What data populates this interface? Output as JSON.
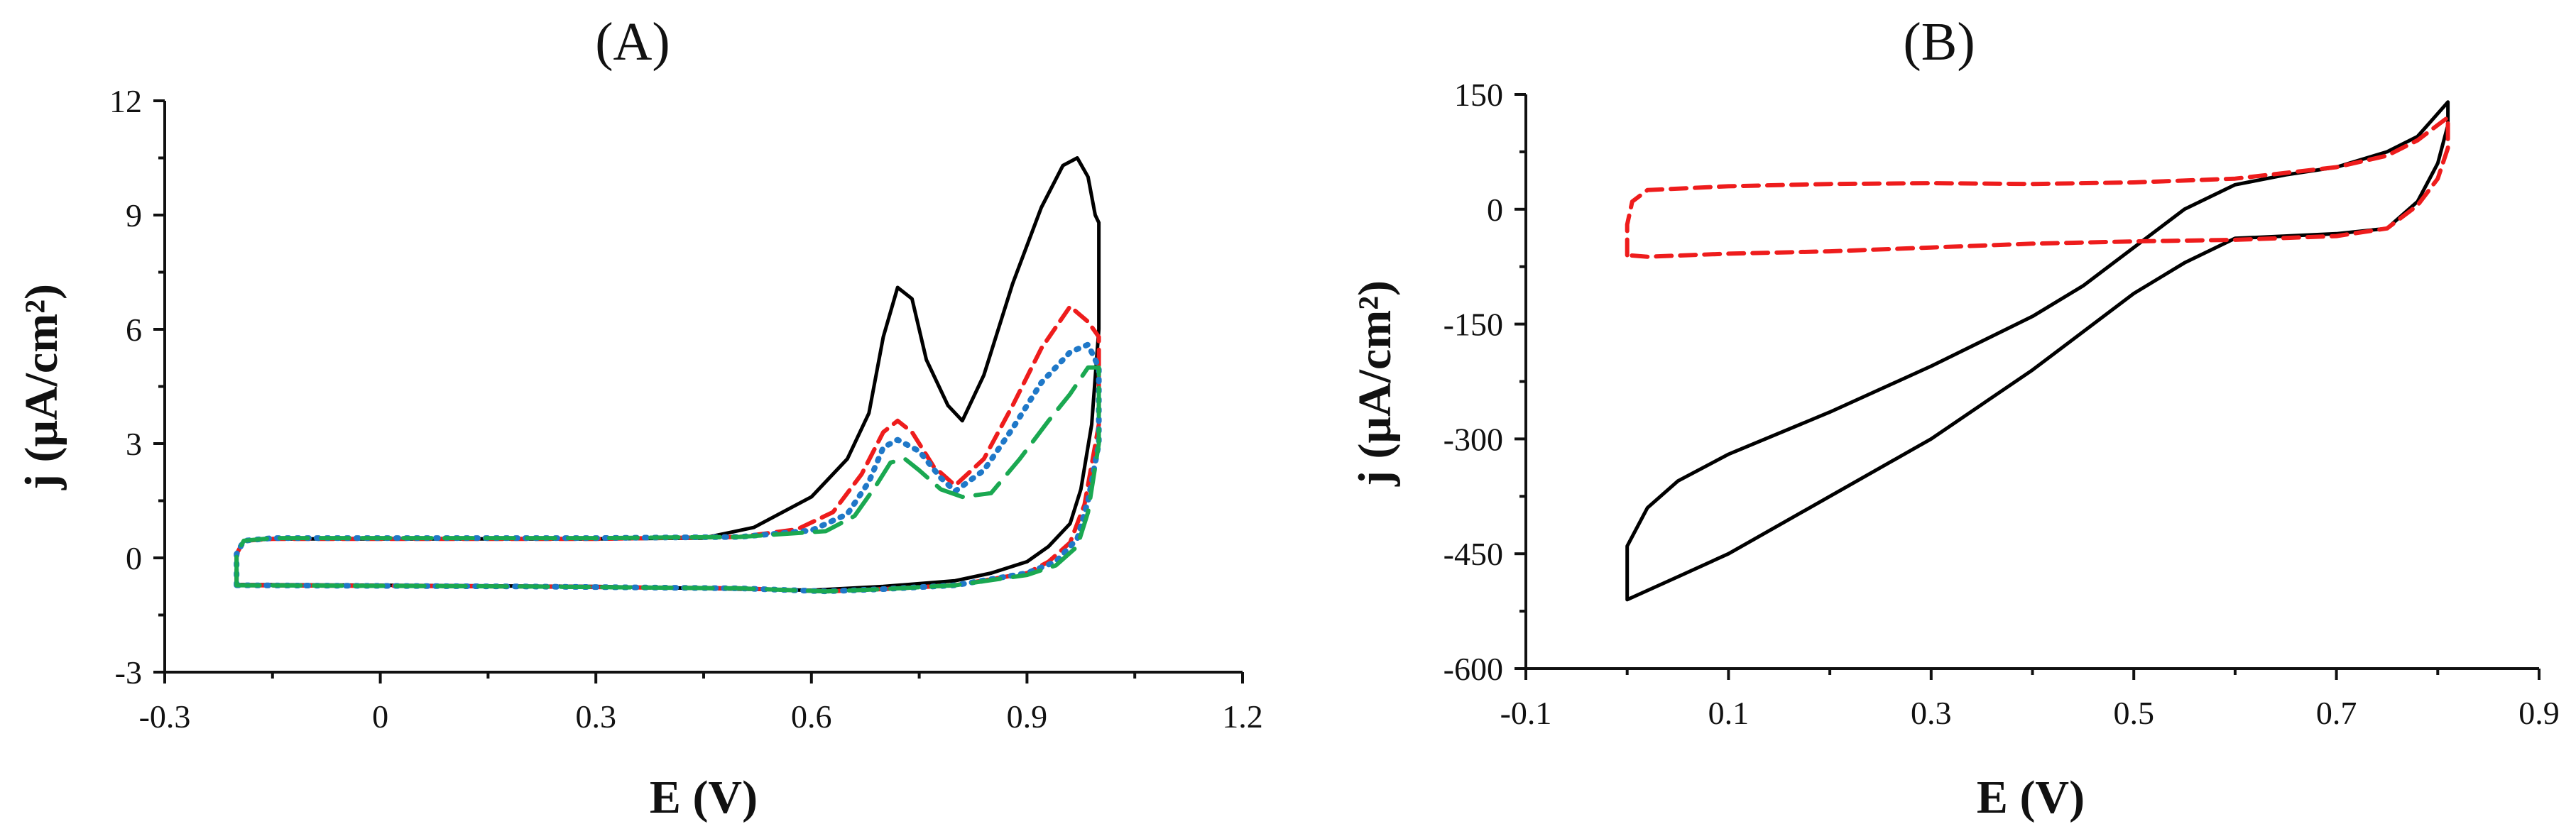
{
  "chart_data": [
    {
      "panel_label": "(A)",
      "type": "line",
      "xlabel": "E (V)",
      "ylabel": "j (μA/cm²)",
      "xlim": [
        -0.3,
        1.2
      ],
      "ylim": [
        -3,
        12
      ],
      "xticks": [
        "-0.3",
        "0",
        "0.3",
        "0.6",
        "0.9",
        "1.2"
      ],
      "yticks": [
        "-3",
        "0",
        "3",
        "6",
        "9",
        "12"
      ],
      "xtick_values": [
        -0.3,
        0,
        0.3,
        0.6,
        0.9,
        1.2
      ],
      "ytick_values": [
        -3,
        0,
        3,
        6,
        9,
        12
      ],
      "grid": false,
      "series": [
        {
          "color": "#000000",
          "dash": "solid",
          "width": 5,
          "points": [
            [
              -0.2,
              -0.7
            ],
            [
              -0.2,
              0.1
            ],
            [
              -0.19,
              0.45
            ],
            [
              -0.15,
              0.5
            ],
            [
              0.0,
              0.5
            ],
            [
              0.3,
              0.5
            ],
            [
              0.45,
              0.52
            ],
            [
              0.52,
              0.8
            ],
            [
              0.6,
              1.6
            ],
            [
              0.65,
              2.6
            ],
            [
              0.68,
              3.8
            ],
            [
              0.7,
              5.8
            ],
            [
              0.72,
              7.1
            ],
            [
              0.74,
              6.8
            ],
            [
              0.76,
              5.2
            ],
            [
              0.79,
              4.0
            ],
            [
              0.81,
              3.6
            ],
            [
              0.84,
              4.8
            ],
            [
              0.88,
              7.2
            ],
            [
              0.92,
              9.2
            ],
            [
              0.95,
              10.3
            ],
            [
              0.97,
              10.5
            ],
            [
              0.985,
              10.0
            ],
            [
              0.995,
              9.0
            ],
            [
              1.0,
              8.8
            ],
            [
              1.0,
              6.0
            ],
            [
              0.99,
              3.5
            ],
            [
              0.975,
              1.8
            ],
            [
              0.96,
              0.9
            ],
            [
              0.93,
              0.3
            ],
            [
              0.9,
              -0.1
            ],
            [
              0.85,
              -0.4
            ],
            [
              0.8,
              -0.6
            ],
            [
              0.7,
              -0.75
            ],
            [
              0.6,
              -0.85
            ],
            [
              0.5,
              -0.82
            ],
            [
              0.3,
              -0.75
            ],
            [
              0.0,
              -0.72
            ],
            [
              -0.2,
              -0.7
            ]
          ]
        },
        {
          "color": "#ee1c1c",
          "dash": "22,12",
          "width": 6,
          "points": [
            [
              -0.2,
              -0.72
            ],
            [
              -0.2,
              0.1
            ],
            [
              -0.19,
              0.45
            ],
            [
              -0.15,
              0.5
            ],
            [
              0.0,
              0.5
            ],
            [
              0.3,
              0.5
            ],
            [
              0.5,
              0.55
            ],
            [
              0.58,
              0.75
            ],
            [
              0.63,
              1.2
            ],
            [
              0.67,
              2.2
            ],
            [
              0.7,
              3.3
            ],
            [
              0.72,
              3.6
            ],
            [
              0.74,
              3.3
            ],
            [
              0.77,
              2.4
            ],
            [
              0.8,
              1.9
            ],
            [
              0.84,
              2.6
            ],
            [
              0.88,
              4.0
            ],
            [
              0.92,
              5.5
            ],
            [
              0.96,
              6.6
            ],
            [
              0.985,
              6.2
            ],
            [
              1.0,
              5.8
            ],
            [
              1.0,
              3.5
            ],
            [
              0.98,
              1.4
            ],
            [
              0.96,
              0.4
            ],
            [
              0.93,
              -0.1
            ],
            [
              0.9,
              -0.4
            ],
            [
              0.8,
              -0.72
            ],
            [
              0.7,
              -0.82
            ],
            [
              0.62,
              -0.88
            ],
            [
              0.5,
              -0.8
            ],
            [
              0.2,
              -0.75
            ],
            [
              -0.2,
              -0.72
            ]
          ]
        },
        {
          "color": "#1f78c8",
          "dash": "3,11",
          "width": 8,
          "points": [
            [
              -0.2,
              -0.72
            ],
            [
              -0.2,
              0.1
            ],
            [
              -0.19,
              0.45
            ],
            [
              -0.15,
              0.52
            ],
            [
              0.0,
              0.52
            ],
            [
              0.3,
              0.52
            ],
            [
              0.5,
              0.55
            ],
            [
              0.6,
              0.72
            ],
            [
              0.65,
              1.15
            ],
            [
              0.68,
              2.0
            ],
            [
              0.7,
              2.9
            ],
            [
              0.72,
              3.1
            ],
            [
              0.75,
              2.8
            ],
            [
              0.78,
              2.1
            ],
            [
              0.8,
              1.75
            ],
            [
              0.84,
              2.3
            ],
            [
              0.88,
              3.4
            ],
            [
              0.92,
              4.6
            ],
            [
              0.96,
              5.4
            ],
            [
              0.985,
              5.6
            ],
            [
              1.0,
              5.0
            ],
            [
              1.0,
              3.0
            ],
            [
              0.985,
              1.5
            ],
            [
              0.97,
              0.5
            ],
            [
              0.94,
              -0.1
            ],
            [
              0.9,
              -0.4
            ],
            [
              0.8,
              -0.72
            ],
            [
              0.7,
              -0.82
            ],
            [
              0.62,
              -0.88
            ],
            [
              0.5,
              -0.8
            ],
            [
              0.2,
              -0.75
            ],
            [
              -0.2,
              -0.72
            ]
          ]
        },
        {
          "color": "#1aa851",
          "dash": "40,18",
          "width": 6,
          "points": [
            [
              -0.2,
              -0.72
            ],
            [
              -0.2,
              0.1
            ],
            [
              -0.19,
              0.45
            ],
            [
              -0.15,
              0.52
            ],
            [
              0.0,
              0.52
            ],
            [
              0.3,
              0.52
            ],
            [
              0.5,
              0.55
            ],
            [
              0.62,
              0.7
            ],
            [
              0.66,
              1.1
            ],
            [
              0.69,
              1.9
            ],
            [
              0.71,
              2.5
            ],
            [
              0.73,
              2.6
            ],
            [
              0.75,
              2.3
            ],
            [
              0.78,
              1.8
            ],
            [
              0.81,
              1.6
            ],
            [
              0.85,
              1.7
            ],
            [
              0.89,
              2.6
            ],
            [
              0.93,
              3.6
            ],
            [
              0.96,
              4.3
            ],
            [
              0.985,
              5.0
            ],
            [
              1.0,
              5.0
            ],
            [
              1.0,
              3.0
            ],
            [
              0.985,
              1.2
            ],
            [
              0.97,
              0.3
            ],
            [
              0.94,
              -0.2
            ],
            [
              0.9,
              -0.45
            ],
            [
              0.8,
              -0.72
            ],
            [
              0.7,
              -0.82
            ],
            [
              0.62,
              -0.88
            ],
            [
              0.5,
              -0.8
            ],
            [
              0.2,
              -0.75
            ],
            [
              -0.2,
              -0.72
            ]
          ]
        }
      ]
    },
    {
      "panel_label": "(B)",
      "type": "line",
      "xlabel": "E (V)",
      "ylabel": "j (μA/cm²)",
      "xlim": [
        -0.1,
        0.9
      ],
      "ylim": [
        -600,
        150
      ],
      "xticks": [
        "-0.1",
        "0.1",
        "0.3",
        "0.5",
        "0.7",
        "0.9"
      ],
      "yticks": [
        "-600",
        "-450",
        "-300",
        "-150",
        "0",
        "150"
      ],
      "xtick_values": [
        -0.1,
        0.1,
        0.3,
        0.5,
        0.7,
        0.9
      ],
      "ytick_values": [
        -600,
        -450,
        -300,
        -150,
        0,
        150
      ],
      "grid": false,
      "series": [
        {
          "color": "#000000",
          "dash": "solid",
          "width": 5,
          "points": [
            [
              0.0,
              -510
            ],
            [
              0.0,
              -440
            ],
            [
              0.02,
              -390
            ],
            [
              0.05,
              -355
            ],
            [
              0.1,
              -320
            ],
            [
              0.2,
              -265
            ],
            [
              0.3,
              -205
            ],
            [
              0.4,
              -140
            ],
            [
              0.45,
              -100
            ],
            [
              0.5,
              -50
            ],
            [
              0.55,
              0
            ],
            [
              0.6,
              32
            ],
            [
              0.65,
              45
            ],
            [
              0.7,
              55
            ],
            [
              0.75,
              75
            ],
            [
              0.78,
              95
            ],
            [
              0.8,
              125
            ],
            [
              0.81,
              140
            ],
            [
              0.81,
              110
            ],
            [
              0.8,
              60
            ],
            [
              0.78,
              10
            ],
            [
              0.75,
              -25
            ],
            [
              0.7,
              -32
            ],
            [
              0.6,
              -38
            ],
            [
              0.55,
              -70
            ],
            [
              0.5,
              -110
            ],
            [
              0.4,
              -210
            ],
            [
              0.3,
              -300
            ],
            [
              0.2,
              -375
            ],
            [
              0.1,
              -450
            ],
            [
              0.05,
              -480
            ],
            [
              0.0,
              -510
            ]
          ]
        },
        {
          "color": "#ee1c1c",
          "dash": "22,12",
          "width": 6,
          "points": [
            [
              0.0,
              -60
            ],
            [
              0.0,
              -20
            ],
            [
              0.005,
              10
            ],
            [
              0.02,
              25
            ],
            [
              0.1,
              30
            ],
            [
              0.2,
              33
            ],
            [
              0.3,
              34
            ],
            [
              0.4,
              33
            ],
            [
              0.5,
              35
            ],
            [
              0.6,
              40
            ],
            [
              0.7,
              55
            ],
            [
              0.75,
              70
            ],
            [
              0.78,
              90
            ],
            [
              0.8,
              110
            ],
            [
              0.81,
              120
            ],
            [
              0.81,
              80
            ],
            [
              0.8,
              40
            ],
            [
              0.78,
              5
            ],
            [
              0.75,
              -25
            ],
            [
              0.7,
              -35
            ],
            [
              0.6,
              -40
            ],
            [
              0.5,
              -42
            ],
            [
              0.4,
              -45
            ],
            [
              0.3,
              -50
            ],
            [
              0.2,
              -55
            ],
            [
              0.1,
              -58
            ],
            [
              0.02,
              -62
            ],
            [
              0.0,
              -60
            ]
          ]
        }
      ]
    }
  ]
}
